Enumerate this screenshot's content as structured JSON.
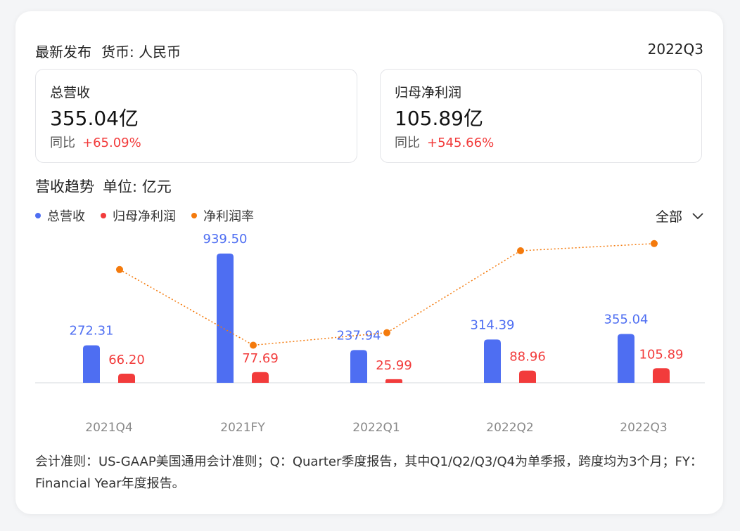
{
  "header": {
    "title": "最新发布",
    "currency": "货币: 人民币",
    "period": "2022Q3"
  },
  "metrics": [
    {
      "label": "总营收",
      "value": "355.04亿",
      "yoy_label": "同比",
      "yoy": "+65.09%"
    },
    {
      "label": "归母净利润",
      "value": "105.89亿",
      "yoy_label": "同比",
      "yoy": "+545.66%"
    }
  ],
  "section": {
    "title": "营收趋势",
    "unit": "单位: 亿元"
  },
  "filter": {
    "label": "全部",
    "icon": "chevron-down-icon"
  },
  "colors": {
    "revenue": "#4e6ef2",
    "profit": "#f23b3b",
    "margin": "#f47a0c",
    "positive": "#f23b3b"
  },
  "chart_data": {
    "type": "bar",
    "categories": [
      "2021Q4",
      "2021FY",
      "2022Q1",
      "2022Q2",
      "2022Q3"
    ],
    "series": [
      {
        "name": "总营收",
        "type": "bar",
        "values": [
          272.31,
          939.5,
          237.94,
          314.39,
          355.04
        ]
      },
      {
        "name": "归母净利润",
        "type": "bar",
        "values": [
          66.2,
          77.69,
          25.99,
          88.96,
          105.89
        ]
      },
      {
        "name": "净利润率",
        "type": "line",
        "values": [
          24.31,
          8.27,
          10.92,
          28.3,
          29.82
        ]
      }
    ],
    "legend_position": "top-left",
    "grid": false
  },
  "footnote": "会计准则：US-GAAP美国通用会计准则；Q：Quarter季度报告，其中Q1/Q2/Q3/Q4为单季报，跨度均为3个月；FY：Financial Year年度报告。"
}
